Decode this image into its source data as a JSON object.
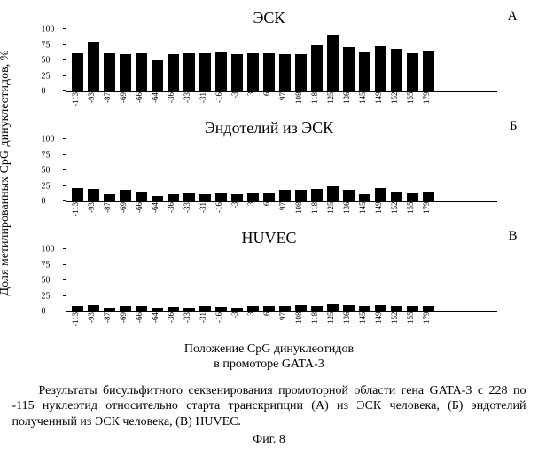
{
  "yAxisLabel": "Доля метилированных CpG динуклеотидов, %",
  "xAxisCaption1": "Положение CpG динуклеотидов",
  "xAxisCaption2": "в промоторе GATA-3",
  "caption": "Результаты бисульфитного секвенирования промоторной области гена GATA-3 с 228 по -115 нуклеотид относительно старта транскрипции (А) из ЭСК человека, (Б) эндотелий полученный из ЭСК человека, (В) HUVEC.",
  "figLabel": "Фиг. 8",
  "categories": [
    "-113",
    "-93",
    "-87",
    "-69",
    "-66",
    "-64",
    "-36",
    "-33",
    "-31",
    "-16",
    "-3",
    "3",
    "6",
    "97",
    "108",
    "118",
    "125",
    "136",
    "145",
    "149",
    "152",
    "155",
    "179"
  ],
  "yTicks": [
    0,
    25,
    50,
    75,
    100
  ],
  "yMax": 100,
  "barColor": "#000000",
  "plotHeight": 70,
  "panels": [
    {
      "title": "ЭСК",
      "letter": "А",
      "values": [
        62,
        80,
        62,
        60,
        62,
        50,
        60,
        62,
        62,
        63,
        60,
        62,
        62,
        60,
        60,
        75,
        90,
        72,
        63,
        73,
        68,
        62,
        64
      ]
    },
    {
      "title": "Эндотелий из ЭСК",
      "letter": "Б",
      "values": [
        21,
        20,
        12,
        18,
        16,
        8,
        12,
        14,
        12,
        13,
        12,
        14,
        14,
        18,
        18,
        20,
        24,
        18,
        12,
        22,
        16,
        14,
        16
      ]
    },
    {
      "title": "HUVEC",
      "letter": "В",
      "values": [
        8,
        10,
        6,
        8,
        8,
        6,
        7,
        6,
        8,
        7,
        6,
        8,
        8,
        8,
        10,
        9,
        12,
        10,
        8,
        10,
        8,
        8,
        9
      ]
    }
  ]
}
